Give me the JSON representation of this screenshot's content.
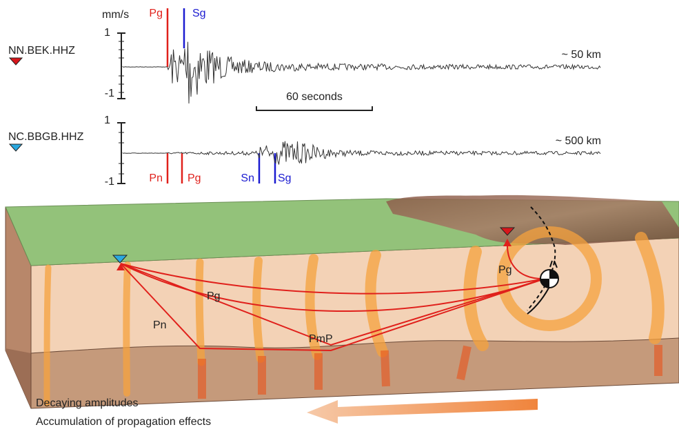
{
  "seismograms": [
    {
      "station": "NN.BEK.HHZ",
      "distance": "~ 50 km",
      "unit": "mm/s",
      "tick_max": "1",
      "tick_min": "-1",
      "phases": [
        "Pg",
        "Sg"
      ]
    },
    {
      "station": "NC.BBGB.HHZ",
      "distance": "~ 500 km",
      "tick_max": "1",
      "tick_min": "-1",
      "phases": [
        "Pn",
        "Pg",
        "Sn",
        "Sg"
      ]
    }
  ],
  "scale_bar": "60 seconds",
  "block_labels": [
    "Pg",
    "Pn",
    "PmP",
    "Pg"
  ],
  "caption": [
    "Decaying amplitudes",
    "Accumulation of propagation effects"
  ]
}
